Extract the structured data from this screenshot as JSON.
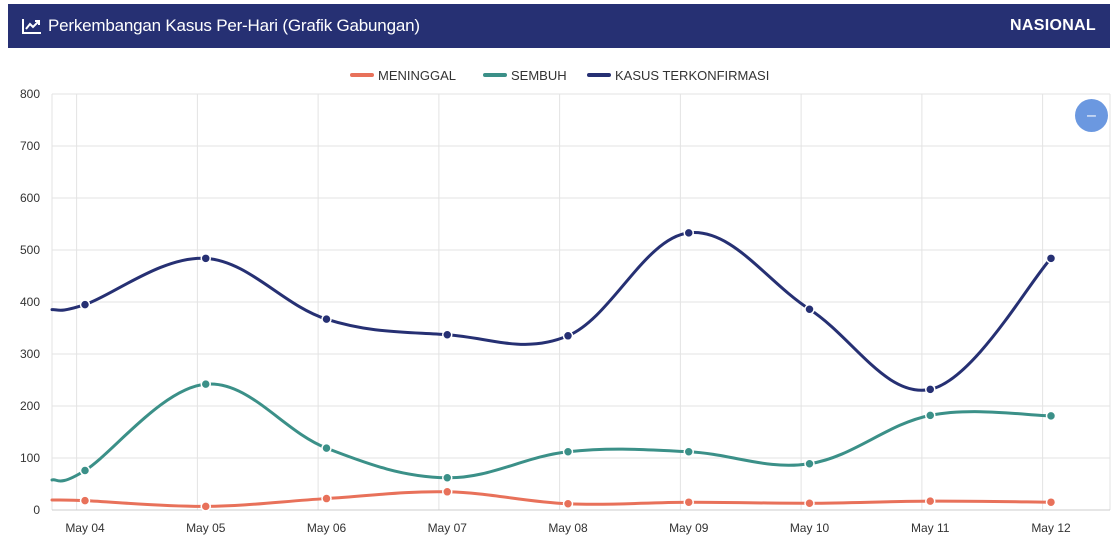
{
  "header": {
    "icon": "line-chart-icon",
    "title": "Perkembangan Kasus Per-Hari (Grafik Gabungan)",
    "region": "NASIONAL"
  },
  "zoom_button": {
    "icon": "minus-icon",
    "label": "–"
  },
  "chart_data": {
    "type": "line",
    "title": "Perkembangan Kasus Per-Hari (Grafik Gabungan)",
    "xlabel": "",
    "ylabel": "",
    "ylim": [
      0,
      800
    ],
    "yticks": [
      0,
      100,
      200,
      300,
      400,
      500,
      600,
      700,
      800
    ],
    "grid": true,
    "legend_position": "top-center",
    "categories": [
      "May 04",
      "May 05",
      "May 06",
      "May 07",
      "May 08",
      "May 09",
      "May 10",
      "May 11",
      "May 12"
    ],
    "series": [
      {
        "name": "MENINGGAL",
        "color": "#e8715a",
        "values": [
          18,
          7,
          22,
          35,
          12,
          15,
          13,
          17,
          15
        ]
      },
      {
        "name": "SEMBUH",
        "color": "#3b9088",
        "values": [
          76,
          242,
          119,
          62,
          112,
          112,
          89,
          182,
          181
        ]
      },
      {
        "name": "KASUS TERKONFIRMASI",
        "color": "#263073",
        "values": [
          395,
          484,
          367,
          337,
          335,
          533,
          386,
          232,
          484
        ]
      }
    ]
  }
}
